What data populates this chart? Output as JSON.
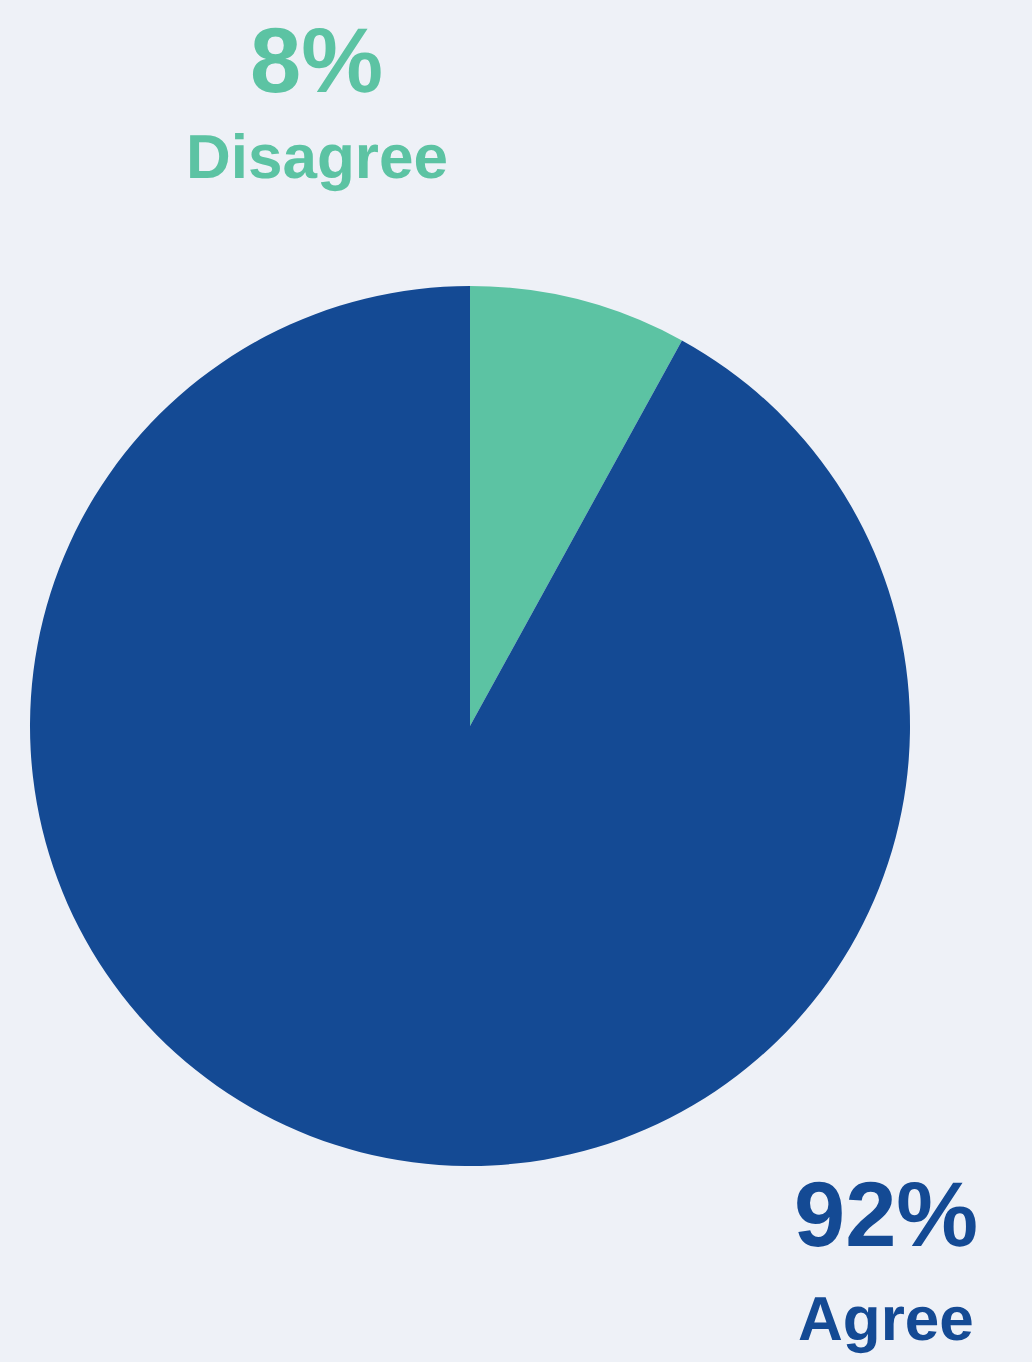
{
  "chart_data": {
    "type": "pie",
    "categories": [
      "Disagree",
      "Agree"
    ],
    "values": [
      8,
      92
    ],
    "value_labels": [
      "8%",
      "92%"
    ],
    "colors": [
      "#5cc3a3",
      "#144a94"
    ],
    "legend": false
  }
}
